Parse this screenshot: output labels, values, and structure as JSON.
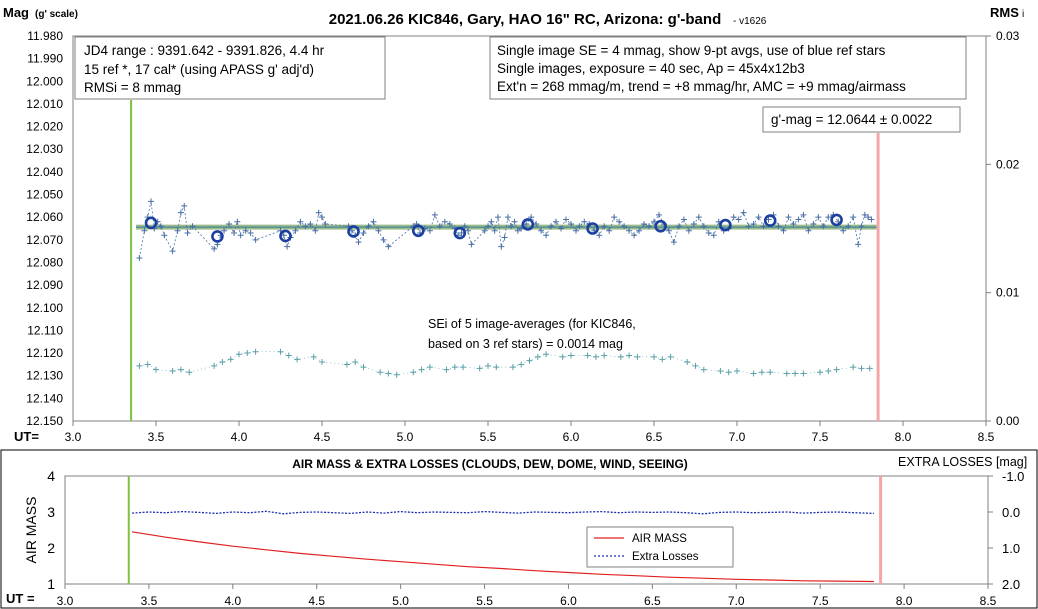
{
  "chart_data": [
    {
      "type": "scatter",
      "title": "2021.06.26 KIC846, Gary, HAO 16\" RC, Arizona: g'-band",
      "version": "- v1626",
      "ylabel": "Mag",
      "ylabel_unit": "(g' scale)",
      "y2label": "RMS",
      "y2label_sub": "i",
      "xlabel": "UT=",
      "xlim": [
        3.0,
        8.5
      ],
      "ylim": [
        11.98,
        12.15
      ],
      "y_inverted": true,
      "y2lim": [
        0.0,
        0.03
      ],
      "xticks": [
        "3.0",
        "3.5",
        "4.0",
        "4.5",
        "5.0",
        "5.5",
        "6.0",
        "6.5",
        "7.0",
        "7.5",
        "8.0",
        "8.5"
      ],
      "yticks": [
        "11.980",
        "11.990",
        "12.000",
        "12.010",
        "12.020",
        "12.030",
        "12.040",
        "12.050",
        "12.060",
        "12.070",
        "12.080",
        "12.090",
        "12.100",
        "12.110",
        "12.120",
        "12.130",
        "12.140",
        "12.150"
      ],
      "y2ticks": [
        "0.03",
        "0.02",
        "0.01",
        "0.00"
      ],
      "annotation_left": [
        "JD4 range : 9391.642 - 9391.826,  4.4  hr",
        "15 ref *, 17 cal* (using APASS g' adj'd)",
        "RMSi = 8 mmag"
      ],
      "annotation_right": [
        "Single image SE = 4 mmag, show  9-pt avgs, use of blue ref stars",
        "Single images, exposure = 40 sec, Ap = 45x4x12b3",
        "Ext'n = 268 mmag/m, trend = +8 mmag/hr, AMC = +9 mmag/airmass"
      ],
      "mag_label": "g'-mag = 12.0644 ± 0.0022",
      "sei_label": [
        "SEi of 5 image-averages (for KIC846,",
        "based on 3 ref stars) = 0.0014 mag"
      ],
      "mean_mag": 12.0644,
      "start_marker_x": 3.35,
      "end_marker_x": 7.85,
      "colors": {
        "single": "#4a6fa5",
        "average": "#1a3fa0",
        "mean_line": "#8fb07a",
        "rms": "#5aa0a8",
        "start": "#7dc242",
        "end": "#f4a6a6"
      },
      "series": [
        {
          "name": "single images",
          "x": [
            3.4,
            3.43,
            3.45,
            3.47,
            3.49,
            3.51,
            3.53,
            3.55,
            3.6,
            3.63,
            3.65,
            3.67,
            3.69,
            3.72,
            3.85,
            3.87,
            3.89,
            3.91,
            3.94,
            3.97,
            3.99,
            4.01,
            4.04,
            4.07,
            4.1,
            4.25,
            4.27,
            4.29,
            4.31,
            4.34,
            4.37,
            4.4,
            4.43,
            4.46,
            4.48,
            4.5,
            4.52,
            4.66,
            4.68,
            4.7,
            4.72,
            4.75,
            4.78,
            4.81,
            4.84,
            4.87,
            4.9,
            5.05,
            5.07,
            5.09,
            5.12,
            5.15,
            5.18,
            5.21,
            5.24,
            5.27,
            5.3,
            5.32,
            5.34,
            5.36,
            5.38,
            5.4,
            5.48,
            5.5,
            5.52,
            5.54,
            5.56,
            5.58,
            5.6,
            5.62,
            5.64,
            5.66,
            5.68,
            5.7,
            5.73,
            5.76,
            5.79,
            5.82,
            5.85,
            5.88,
            5.91,
            5.94,
            5.97,
            6.0,
            6.03,
            6.05,
            6.08,
            6.11,
            6.14,
            6.17,
            6.2,
            6.23,
            6.26,
            6.29,
            6.32,
            6.35,
            6.38,
            6.41,
            6.44,
            6.47,
            6.5,
            6.53,
            6.56,
            6.59,
            6.62,
            6.65,
            6.68,
            6.71,
            6.74,
            6.77,
            6.8,
            6.83,
            6.86,
            6.89,
            6.92,
            6.95,
            6.98,
            7.01,
            7.04,
            7.07,
            7.1,
            7.13,
            7.16,
            7.19,
            7.22,
            7.25,
            7.28,
            7.31,
            7.34,
            7.37,
            7.4,
            7.43,
            7.46,
            7.49,
            7.52,
            7.55,
            7.58,
            7.61,
            7.64,
            7.67,
            7.7,
            7.73,
            7.75,
            7.77,
            7.79,
            7.81
          ],
          "y": [
            12.078,
            12.066,
            12.06,
            12.053,
            12.065,
            12.062,
            12.064,
            12.068,
            12.075,
            12.066,
            12.058,
            12.055,
            12.067,
            12.064,
            12.074,
            12.072,
            12.068,
            12.066,
            12.063,
            12.067,
            12.062,
            12.068,
            12.066,
            12.067,
            12.07,
            12.066,
            12.068,
            12.073,
            12.069,
            12.066,
            12.062,
            12.064,
            12.063,
            12.066,
            12.058,
            12.06,
            12.063,
            12.064,
            12.066,
            12.068,
            12.071,
            12.067,
            12.064,
            12.062,
            12.066,
            12.07,
            12.073,
            12.064,
            12.063,
            12.067,
            12.065,
            12.066,
            12.059,
            12.064,
            12.062,
            12.063,
            12.065,
            12.068,
            12.067,
            12.064,
            12.066,
            12.072,
            12.066,
            12.064,
            12.062,
            12.066,
            12.06,
            12.073,
            12.069,
            12.06,
            12.064,
            12.062,
            12.066,
            12.065,
            12.063,
            12.06,
            12.063,
            12.066,
            12.068,
            12.064,
            12.062,
            12.065,
            12.061,
            12.063,
            12.066,
            12.064,
            12.062,
            12.063,
            12.066,
            12.068,
            12.064,
            12.066,
            12.06,
            12.062,
            12.064,
            12.066,
            12.068,
            12.066,
            12.063,
            12.064,
            12.062,
            12.059,
            12.063,
            12.066,
            12.071,
            12.064,
            12.061,
            12.066,
            12.063,
            12.06,
            12.064,
            12.067,
            12.068,
            12.062,
            12.066,
            12.065,
            12.06,
            12.061,
            12.058,
            12.064,
            12.063,
            12.06,
            12.064,
            12.061,
            12.059,
            12.064,
            12.066,
            12.06,
            12.063,
            12.061,
            12.059,
            12.066,
            12.063,
            12.06,
            12.064,
            12.06,
            12.059,
            12.062,
            12.066,
            12.064,
            12.06,
            12.072,
            12.064,
            12.059,
            12.06,
            12.061
          ]
        },
        {
          "name": "9-pt averages",
          "x": [
            3.47,
            3.87,
            4.28,
            4.69,
            5.08,
            5.33,
            5.74,
            6.13,
            6.54,
            6.93,
            7.2,
            7.6
          ],
          "y": [
            12.0625,
            12.0685,
            12.0683,
            12.0663,
            12.066,
            12.067,
            12.0632,
            12.065,
            12.064,
            12.0635,
            12.0615,
            12.0612
          ]
        },
        {
          "name": "RMS",
          "x": [
            3.4,
            3.45,
            3.5,
            3.6,
            3.65,
            3.7,
            3.85,
            3.9,
            3.95,
            4.0,
            4.05,
            4.1,
            4.25,
            4.3,
            4.35,
            4.45,
            4.5,
            4.65,
            4.7,
            4.75,
            4.85,
            4.9,
            4.95,
            5.05,
            5.1,
            5.15,
            5.25,
            5.3,
            5.35,
            5.45,
            5.5,
            5.55,
            5.65,
            5.7,
            5.75,
            5.8,
            5.85,
            5.95,
            6.0,
            6.1,
            6.15,
            6.2,
            6.3,
            6.35,
            6.4,
            6.5,
            6.55,
            6.6,
            6.7,
            6.75,
            6.8,
            6.9,
            6.95,
            7.0,
            7.1,
            7.15,
            7.2,
            7.3,
            7.35,
            7.4,
            7.5,
            7.55,
            7.6,
            7.7,
            7.75,
            7.8
          ],
          "y": [
            0.0043,
            0.0044,
            0.004,
            0.0039,
            0.004,
            0.0038,
            0.0043,
            0.0046,
            0.0048,
            0.0052,
            0.0053,
            0.0054,
            0.0054,
            0.0051,
            0.0048,
            0.005,
            0.0046,
            0.0044,
            0.0046,
            0.0042,
            0.0038,
            0.0037,
            0.0036,
            0.0038,
            0.004,
            0.0042,
            0.004,
            0.0042,
            0.0042,
            0.0041,
            0.0043,
            0.0042,
            0.0042,
            0.0044,
            0.0047,
            0.005,
            0.0052,
            0.005,
            0.0051,
            0.0051,
            0.005,
            0.0051,
            0.005,
            0.0051,
            0.005,
            0.005,
            0.0048,
            0.005,
            0.0046,
            0.0043,
            0.004,
            0.0039,
            0.0038,
            0.0039,
            0.0037,
            0.0038,
            0.0038,
            0.0037,
            0.0037,
            0.0037,
            0.0038,
            0.0039,
            0.004,
            0.0042,
            0.0041,
            0.0041
          ]
        }
      ]
    },
    {
      "type": "line",
      "title": "AIR MASS & EXTRA LOSSES (CLOUDS, DEW, DOME, WIND, SEEING)",
      "ylabel": "AIR MASS",
      "y2label": "EXTRA LOSSES [mag]",
      "xlabel": "UT =",
      "xlim": [
        3.0,
        8.5
      ],
      "ylim": [
        1,
        4
      ],
      "y2lim": [
        -1.0,
        2.0
      ],
      "y2_inverted": true,
      "xticks": [
        "3.0",
        "3.5",
        "4.0",
        "4.5",
        "5.0",
        "5.5",
        "6.0",
        "6.5",
        "7.0",
        "7.5",
        "8.0",
        "8.5"
      ],
      "yticks": [
        "4",
        "3",
        "2",
        "1"
      ],
      "y2ticks": [
        "-1.0",
        "0.0",
        "1.0",
        "2.0"
      ],
      "legend": [
        "AIR MASS",
        "Extra Losses"
      ],
      "legend_position": "center-right",
      "colors": {
        "airmass": "#e02020",
        "losses": "#1a2fb0",
        "start": "#7dc242",
        "end": "#f4a6a6"
      },
      "series": [
        {
          "name": "AIR MASS",
          "x": [
            3.4,
            3.6,
            3.8,
            4.0,
            4.2,
            4.4,
            4.6,
            4.8,
            5.0,
            5.2,
            5.4,
            5.6,
            5.8,
            6.0,
            6.2,
            6.4,
            6.6,
            6.8,
            7.0,
            7.2,
            7.4,
            7.6,
            7.82
          ],
          "y": [
            2.45,
            2.3,
            2.17,
            2.05,
            1.95,
            1.85,
            1.77,
            1.69,
            1.62,
            1.55,
            1.48,
            1.43,
            1.37,
            1.32,
            1.27,
            1.23,
            1.19,
            1.16,
            1.13,
            1.11,
            1.09,
            1.08,
            1.07
          ]
        },
        {
          "name": "Extra Losses",
          "x": [
            3.4,
            3.5,
            3.6,
            3.7,
            3.8,
            3.9,
            4.0,
            4.1,
            4.2,
            4.3,
            4.4,
            4.5,
            4.6,
            4.7,
            4.8,
            4.9,
            5.0,
            5.1,
            5.2,
            5.3,
            5.4,
            5.5,
            5.6,
            5.7,
            5.8,
            5.9,
            6.0,
            6.1,
            6.2,
            6.3,
            6.4,
            6.5,
            6.6,
            6.7,
            6.8,
            6.9,
            7.0,
            7.1,
            7.2,
            7.3,
            7.4,
            7.5,
            7.6,
            7.7,
            7.82
          ],
          "y": [
            0.03,
            0.0,
            0.02,
            -0.01,
            0.01,
            0.04,
            0.0,
            0.02,
            -0.02,
            0.05,
            0.01,
            0.0,
            0.02,
            0.04,
            0.0,
            0.03,
            -0.01,
            0.02,
            0.0,
            0.01,
            0.02,
            -0.01,
            0.01,
            0.03,
            0.0,
            0.01,
            0.02,
            0.0,
            -0.01,
            0.02,
            0.0,
            0.01,
            0.0,
            0.02,
            0.05,
            0.01,
            0.0,
            0.02,
            0.01,
            0.0,
            0.03,
            0.01,
            0.0,
            0.02,
            0.04
          ]
        }
      ]
    }
  ]
}
